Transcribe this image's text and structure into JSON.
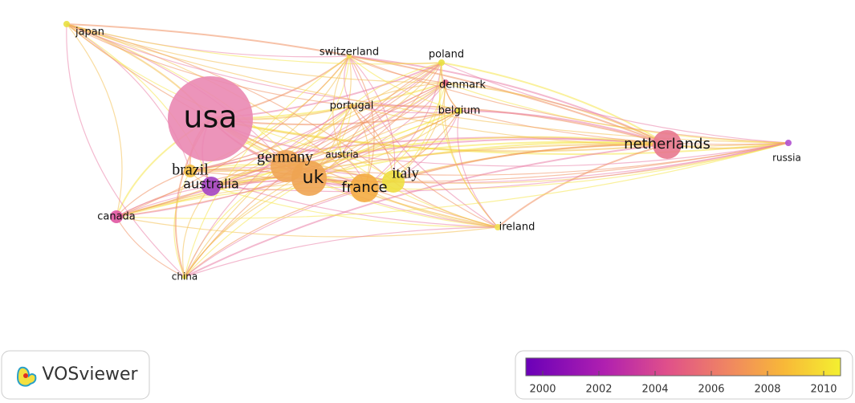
{
  "nodes": [
    {
      "label": "usa"
    },
    {
      "label": "netherlands"
    },
    {
      "label": "germany"
    },
    {
      "label": "uk"
    },
    {
      "label": "france"
    },
    {
      "label": "italy"
    },
    {
      "label": "brazil"
    },
    {
      "label": "australia"
    },
    {
      "label": "canada"
    },
    {
      "label": "japan"
    },
    {
      "label": "switzerland"
    },
    {
      "label": "poland"
    },
    {
      "label": "denmark"
    },
    {
      "label": "portugal"
    },
    {
      "label": "belgium"
    },
    {
      "label": "austria"
    },
    {
      "label": "russia"
    },
    {
      "label": "ireland"
    },
    {
      "label": "china"
    }
  ],
  "logo": {
    "text": "VOSviewer"
  },
  "legend": {
    "range": [
      1999.4,
      2010.6
    ],
    "ticks": [
      2000,
      2002,
      2004,
      2006,
      2008,
      2010
    ]
  }
}
